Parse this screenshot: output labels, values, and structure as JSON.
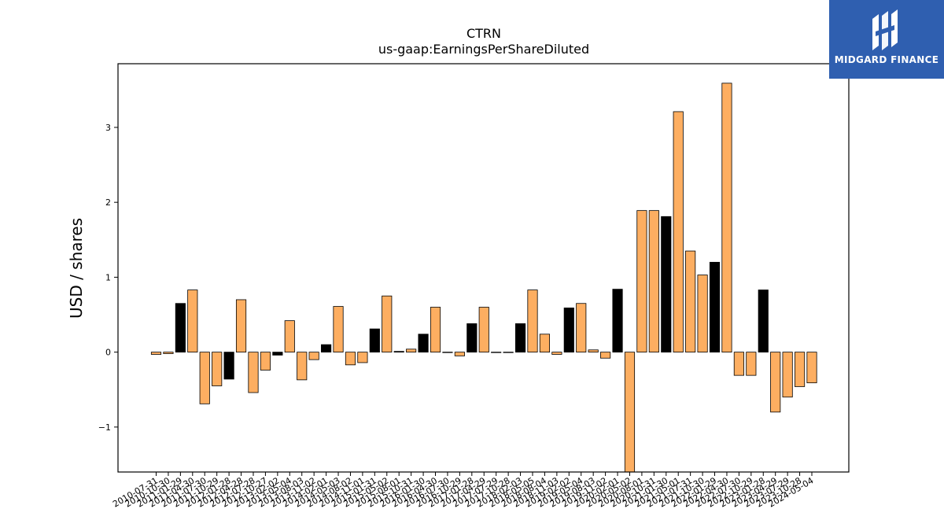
{
  "brand": {
    "name": "MIDGARD FINANCE",
    "bg_color": "#2f5fb0",
    "logo_icon": "midgard-mark-icon"
  },
  "chart_data": {
    "type": "bar",
    "title": "CTRN",
    "subtitle": "us-gaap:EarningsPerShareDiluted",
    "ylabel": "USD / shares",
    "xlabel": "",
    "ylim": [
      -1.6,
      3.85
    ],
    "yticks": [
      -1,
      0,
      1,
      2,
      3
    ],
    "grid": false,
    "colors": {
      "orange": "#fdae61",
      "black": "#000000",
      "edge": "#000000"
    },
    "categories": [
      "2010-07-31",
      "2010-10-30",
      "2011-01-29",
      "2011-04-30",
      "2011-07-30",
      "2011-10-29",
      "2012-01-28",
      "2012-04-28",
      "2012-07-28",
      "2012-10-27",
      "2013-02-02",
      "2013-05-04",
      "2013-08-03",
      "2013-11-02",
      "2014-02-01",
      "2014-05-03",
      "2014-08-02",
      "2014-11-01",
      "2015-01-31",
      "2015-05-02",
      "2015-08-01",
      "2015-10-31",
      "2016-01-30",
      "2016-04-30",
      "2016-07-30",
      "2016-10-29",
      "2017-01-28",
      "2017-04-29",
      "2017-07-29",
      "2017-10-28",
      "2018-02-03",
      "2018-05-05",
      "2018-08-04",
      "2018-11-03",
      "2019-02-02",
      "2019-05-04",
      "2019-08-03",
      "2019-11-02",
      "2020-02-01",
      "2020-05-02",
      "2020-08-01",
      "2020-10-31",
      "2021-01-30",
      "2021-05-01",
      "2021-07-31",
      "2021-10-30",
      "2022-01-29",
      "2022-04-30",
      "2022-07-30",
      "2022-10-29",
      "2023-01-28",
      "2023-04-29",
      "2023-07-29",
      "2023-10-28",
      "2024-05-04"
    ],
    "values": [
      -0.03,
      -0.02,
      0.65,
      0.83,
      -0.69,
      -0.45,
      -0.36,
      0.7,
      -0.54,
      -0.24,
      -0.04,
      0.42,
      -0.37,
      -0.1,
      0.1,
      0.61,
      -0.17,
      -0.14,
      0.31,
      0.75,
      0.01,
      0.04,
      0.24,
      0.6,
      0.0,
      -0.05,
      0.38,
      0.6,
      0.0,
      0.0,
      0.38,
      0.83,
      0.24,
      -0.03,
      0.59,
      0.65,
      0.03,
      -0.08,
      0.84,
      -1.62,
      1.89,
      1.89,
      1.81,
      3.21,
      1.35,
      1.03,
      1.2,
      3.59,
      -0.31,
      -0.31,
      0.83,
      -0.8,
      -0.6,
      -0.46,
      -0.41
    ],
    "bar_colors": [
      "orange",
      "orange",
      "black",
      "orange",
      "orange",
      "orange",
      "black",
      "orange",
      "orange",
      "orange",
      "black",
      "orange",
      "orange",
      "orange",
      "black",
      "orange",
      "orange",
      "orange",
      "black",
      "orange",
      "black",
      "orange",
      "black",
      "orange",
      "black",
      "orange",
      "black",
      "orange",
      "black",
      "orange",
      "black",
      "orange",
      "orange",
      "orange",
      "black",
      "orange",
      "orange",
      "orange",
      "black",
      "orange",
      "orange",
      "orange",
      "black",
      "orange",
      "orange",
      "orange",
      "black",
      "orange",
      "orange",
      "orange",
      "black",
      "orange",
      "orange",
      "orange",
      "orange"
    ]
  }
}
